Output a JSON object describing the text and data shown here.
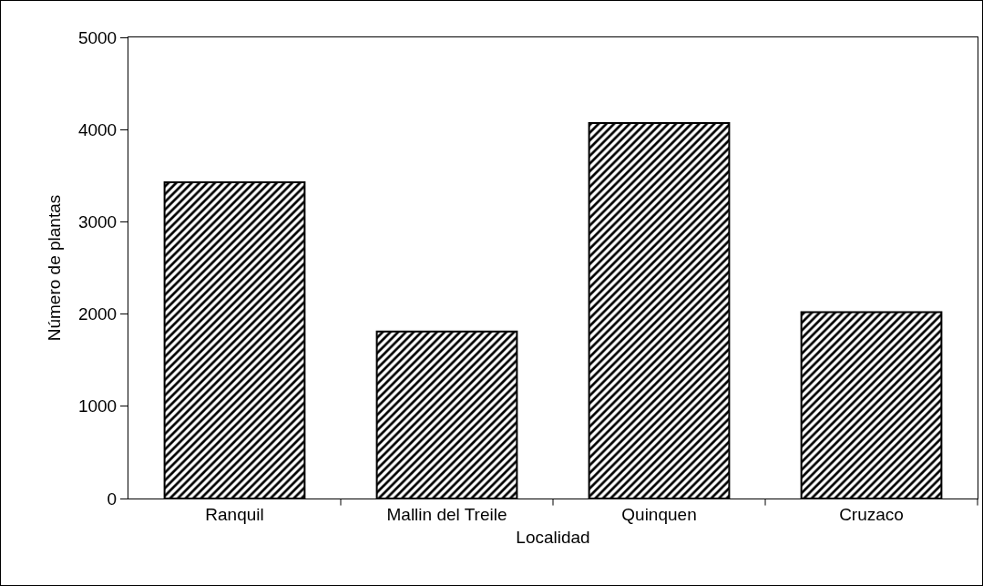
{
  "chart_data": {
    "type": "bar",
    "xlabel": "Localidad",
    "ylabel": "Número de plantas",
    "categories": [
      "Ranquil",
      "Mallin del Treile",
      "Quinquen",
      "Cruzaco"
    ],
    "values": [
      3430,
      1810,
      4070,
      2020
    ],
    "color": "#000000",
    "ylim": [
      0,
      5000
    ],
    "yticks": [
      0,
      1000,
      2000,
      3000,
      4000,
      5000
    ],
    "grid": false
  }
}
